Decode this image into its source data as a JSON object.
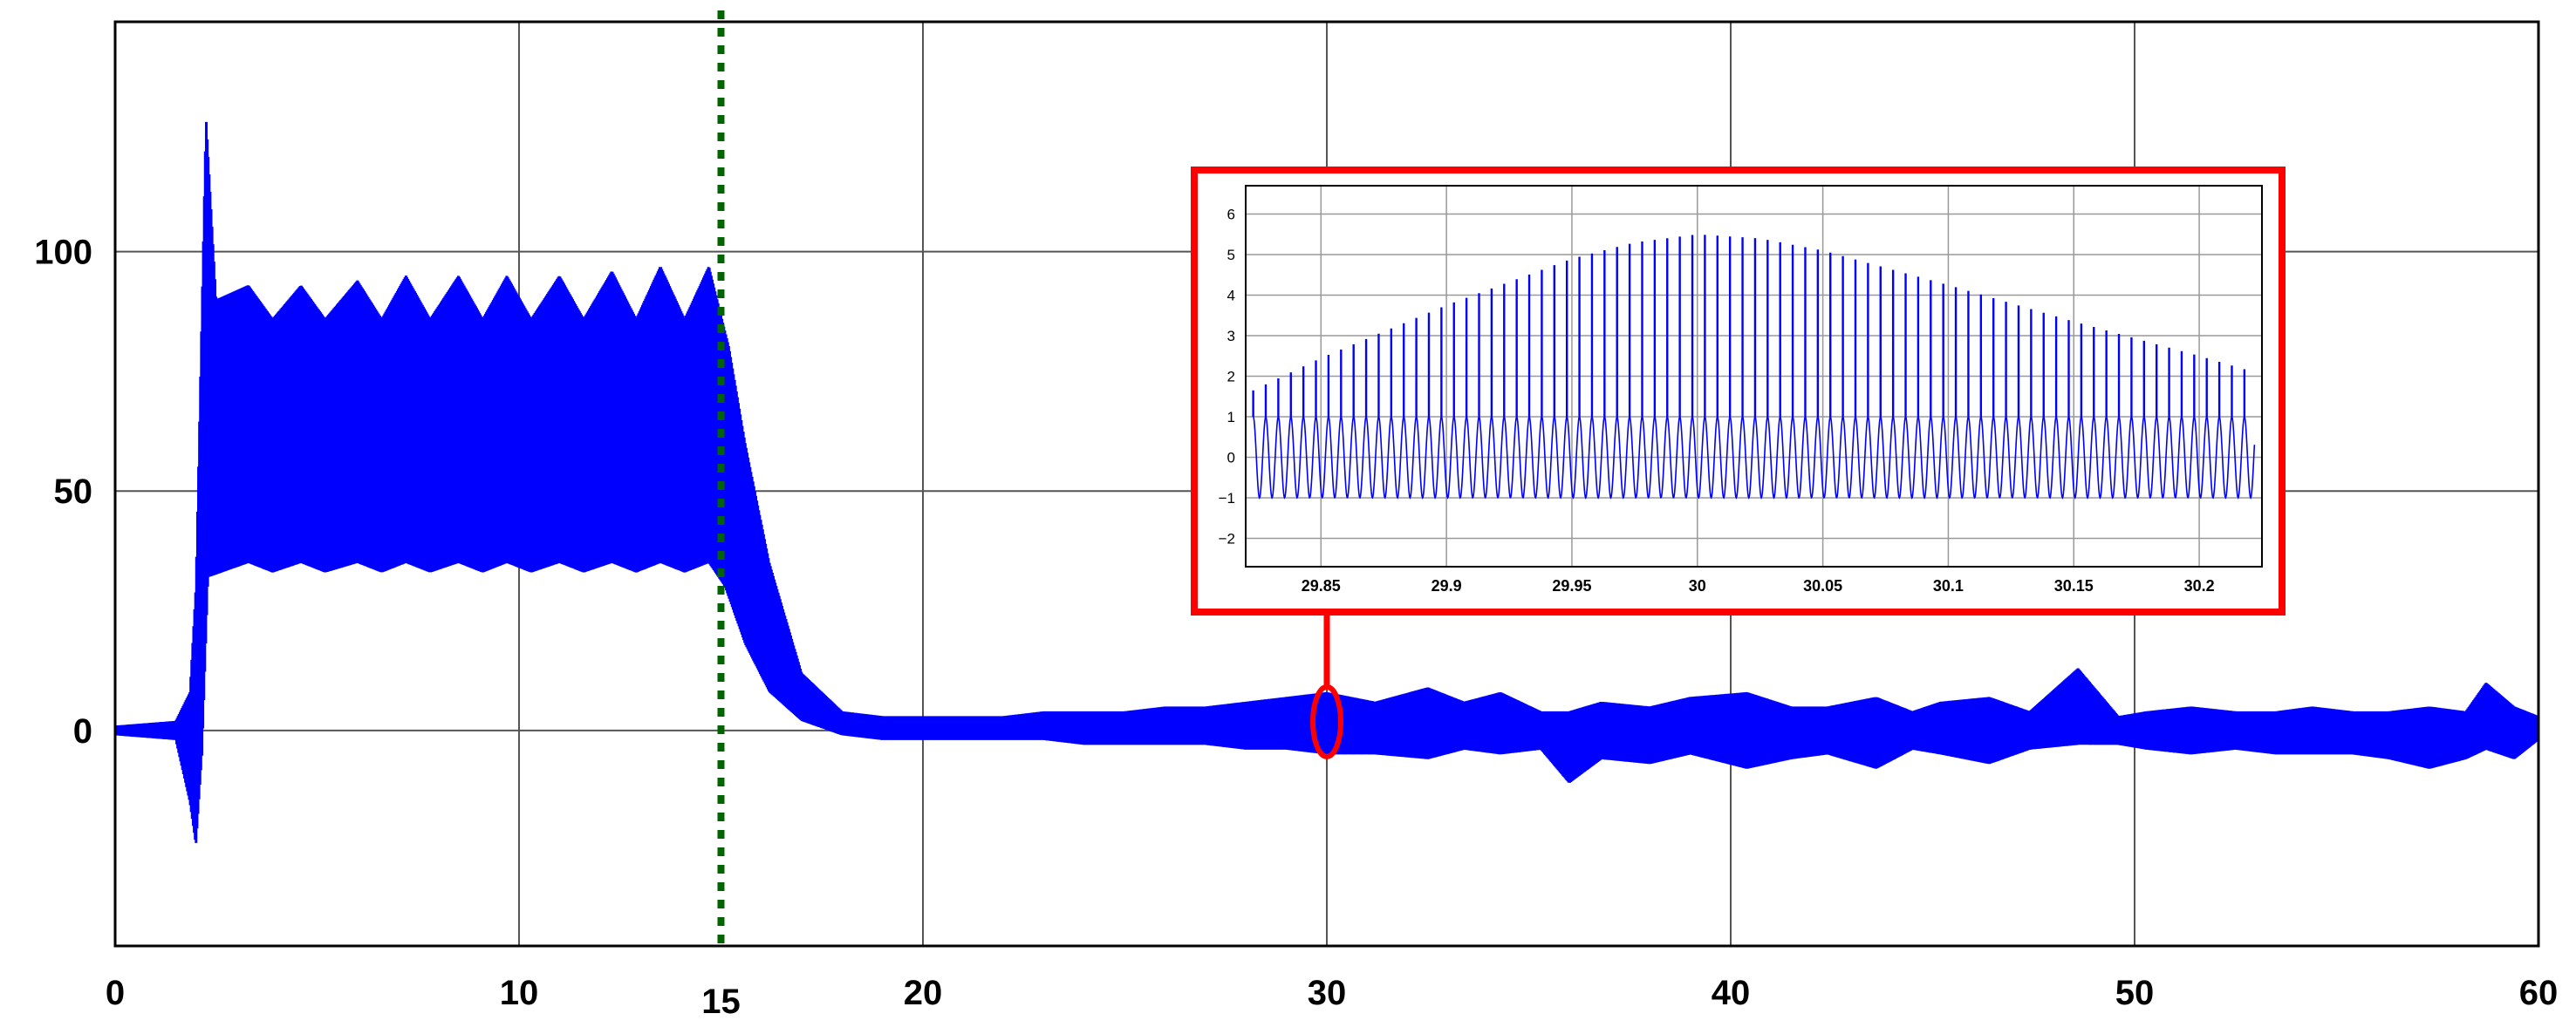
{
  "chart_data": [
    {
      "type": "line",
      "title": "",
      "xlabel": "",
      "ylabel": "",
      "xlim": [
        0,
        60
      ],
      "ylim": [
        -45,
        148
      ],
      "xticks": [
        "0",
        "10",
        "20",
        "30",
        "40",
        "50",
        "60"
      ],
      "yticks": [
        "0",
        "50",
        "100"
      ],
      "grid": true,
      "line_color": "#0000ff",
      "marker_line": {
        "x": 15,
        "label": "15",
        "color": "#006400",
        "style": "dotted"
      },
      "highlight": {
        "x": 30,
        "y": 0,
        "color": "#ff0000",
        "shape": "ellipse"
      },
      "series": [
        {
          "description_points": "upper and lower envelope of a densely oscillating signal",
          "upper_envelope": [
            [
              0,
              1
            ],
            [
              1.5,
              2
            ],
            [
              1.85,
              8
            ],
            [
              2.0,
              30
            ],
            [
              2.25,
              128
            ],
            [
              2.5,
              90
            ],
            [
              3.3,
              93
            ],
            [
              3.9,
              86
            ],
            [
              4.6,
              93
            ],
            [
              5.2,
              86
            ],
            [
              6.0,
              94
            ],
            [
              6.6,
              86
            ],
            [
              7.2,
              95
            ],
            [
              7.8,
              86
            ],
            [
              8.5,
              95
            ],
            [
              9.1,
              86
            ],
            [
              9.7,
              95
            ],
            [
              10.3,
              86
            ],
            [
              11.0,
              95
            ],
            [
              11.6,
              86
            ],
            [
              12.3,
              96
            ],
            [
              12.9,
              86
            ],
            [
              13.5,
              97
            ],
            [
              14.1,
              86
            ],
            [
              14.7,
              97
            ],
            [
              15.2,
              80
            ],
            [
              15.6,
              60
            ],
            [
              16.2,
              35
            ],
            [
              17.0,
              12
            ],
            [
              18.0,
              4
            ],
            [
              19.0,
              3
            ],
            [
              20.0,
              3
            ],
            [
              21.0,
              3
            ],
            [
              22.0,
              3
            ],
            [
              23.0,
              4
            ],
            [
              24.0,
              4
            ],
            [
              25.0,
              4
            ],
            [
              26.0,
              5
            ],
            [
              27.0,
              5
            ],
            [
              28.0,
              6
            ],
            [
              29.0,
              7
            ],
            [
              30.0,
              8
            ],
            [
              31.2,
              6
            ],
            [
              32.5,
              9
            ],
            [
              33.4,
              6
            ],
            [
              34.3,
              8
            ],
            [
              35.3,
              4
            ],
            [
              36.0,
              4
            ],
            [
              36.8,
              6
            ],
            [
              38.0,
              5
            ],
            [
              39.0,
              7
            ],
            [
              40.4,
              8
            ],
            [
              41.5,
              5
            ],
            [
              42.4,
              5
            ],
            [
              43.6,
              7
            ],
            [
              44.5,
              4
            ],
            [
              45.2,
              6
            ],
            [
              46.4,
              7
            ],
            [
              47.4,
              4
            ],
            [
              48.6,
              13
            ],
            [
              49.6,
              3
            ],
            [
              50.3,
              4
            ],
            [
              51.4,
              5
            ],
            [
              52.5,
              4
            ],
            [
              53.5,
              4
            ],
            [
              54.4,
              5
            ],
            [
              55.4,
              4
            ],
            [
              56.3,
              4
            ],
            [
              57.3,
              5
            ],
            [
              58.2,
              4
            ],
            [
              58.7,
              10
            ],
            [
              59.4,
              5
            ],
            [
              60,
              3
            ]
          ],
          "lower_envelope": [
            [
              0,
              -1
            ],
            [
              1.5,
              -2
            ],
            [
              1.85,
              -15
            ],
            [
              2.0,
              -24
            ],
            [
              2.15,
              -5
            ],
            [
              2.3,
              32
            ],
            [
              3.3,
              35
            ],
            [
              3.9,
              33
            ],
            [
              4.6,
              35
            ],
            [
              5.2,
              33
            ],
            [
              6.0,
              35
            ],
            [
              6.6,
              33
            ],
            [
              7.2,
              35
            ],
            [
              7.8,
              33
            ],
            [
              8.5,
              35
            ],
            [
              9.1,
              33
            ],
            [
              9.7,
              35
            ],
            [
              10.3,
              33
            ],
            [
              11.0,
              35
            ],
            [
              11.6,
              33
            ],
            [
              12.3,
              35
            ],
            [
              12.9,
              33
            ],
            [
              13.5,
              35
            ],
            [
              14.1,
              33
            ],
            [
              14.7,
              35
            ],
            [
              15.1,
              30
            ],
            [
              15.6,
              18
            ],
            [
              16.2,
              8
            ],
            [
              17.0,
              2
            ],
            [
              18.0,
              -1
            ],
            [
              19.0,
              -2
            ],
            [
              20.0,
              -2
            ],
            [
              21.0,
              -2
            ],
            [
              22.0,
              -2
            ],
            [
              23.0,
              -2
            ],
            [
              24.0,
              -3
            ],
            [
              25.0,
              -3
            ],
            [
              26.0,
              -3
            ],
            [
              27.0,
              -3
            ],
            [
              28.0,
              -4
            ],
            [
              29.0,
              -4
            ],
            [
              30.0,
              -5
            ],
            [
              31.2,
              -5
            ],
            [
              32.5,
              -6
            ],
            [
              33.4,
              -4
            ],
            [
              34.3,
              -5
            ],
            [
              35.3,
              -4
            ],
            [
              36.0,
              -11
            ],
            [
              36.8,
              -6
            ],
            [
              38.0,
              -7
            ],
            [
              39.0,
              -5
            ],
            [
              40.4,
              -8
            ],
            [
              41.5,
              -6
            ],
            [
              42.4,
              -5
            ],
            [
              43.6,
              -8
            ],
            [
              44.5,
              -4
            ],
            [
              45.2,
              -5
            ],
            [
              46.4,
              -7
            ],
            [
              47.4,
              -4
            ],
            [
              48.6,
              -3
            ],
            [
              49.6,
              -3
            ],
            [
              50.3,
              -4
            ],
            [
              51.4,
              -5
            ],
            [
              52.5,
              -4
            ],
            [
              53.5,
              -5
            ],
            [
              54.4,
              -5
            ],
            [
              55.4,
              -5
            ],
            [
              56.3,
              -6
            ],
            [
              57.3,
              -8
            ],
            [
              58.2,
              -6
            ],
            [
              58.7,
              -4
            ],
            [
              59.4,
              -6
            ],
            [
              60,
              -2
            ]
          ]
        }
      ]
    },
    {
      "type": "line",
      "title": "",
      "xlabel": "",
      "ylabel": "",
      "xlim": [
        29.82,
        30.225
      ],
      "ylim": [
        -2.7,
        6.7
      ],
      "xticks": [
        "29.85",
        "29.9",
        "29.95",
        "30",
        "30.05",
        "30.1",
        "30.15",
        "30.2"
      ],
      "yticks": [
        "-2",
        "-1",
        "0",
        "1",
        "2",
        "3",
        "4",
        "5",
        "6"
      ],
      "grid": true,
      "border_color": "#ff0000",
      "line_color": "#0000ff",
      "series": [
        {
          "sine_amplitude": 1,
          "sine_period": 0.005,
          "spike_envelope": [
            [
              29.823,
              1.65
            ],
            [
              29.85,
              2.45
            ],
            [
              29.9,
              3.75
            ],
            [
              29.95,
              4.9
            ],
            [
              29.975,
              5.3
            ],
            [
              30.0,
              5.5
            ],
            [
              30.025,
              5.4
            ],
            [
              30.05,
              5.1
            ],
            [
              30.1,
              4.25
            ],
            [
              30.15,
              3.35
            ],
            [
              30.2,
              2.5
            ],
            [
              30.222,
              2.1
            ]
          ]
        }
      ]
    }
  ]
}
